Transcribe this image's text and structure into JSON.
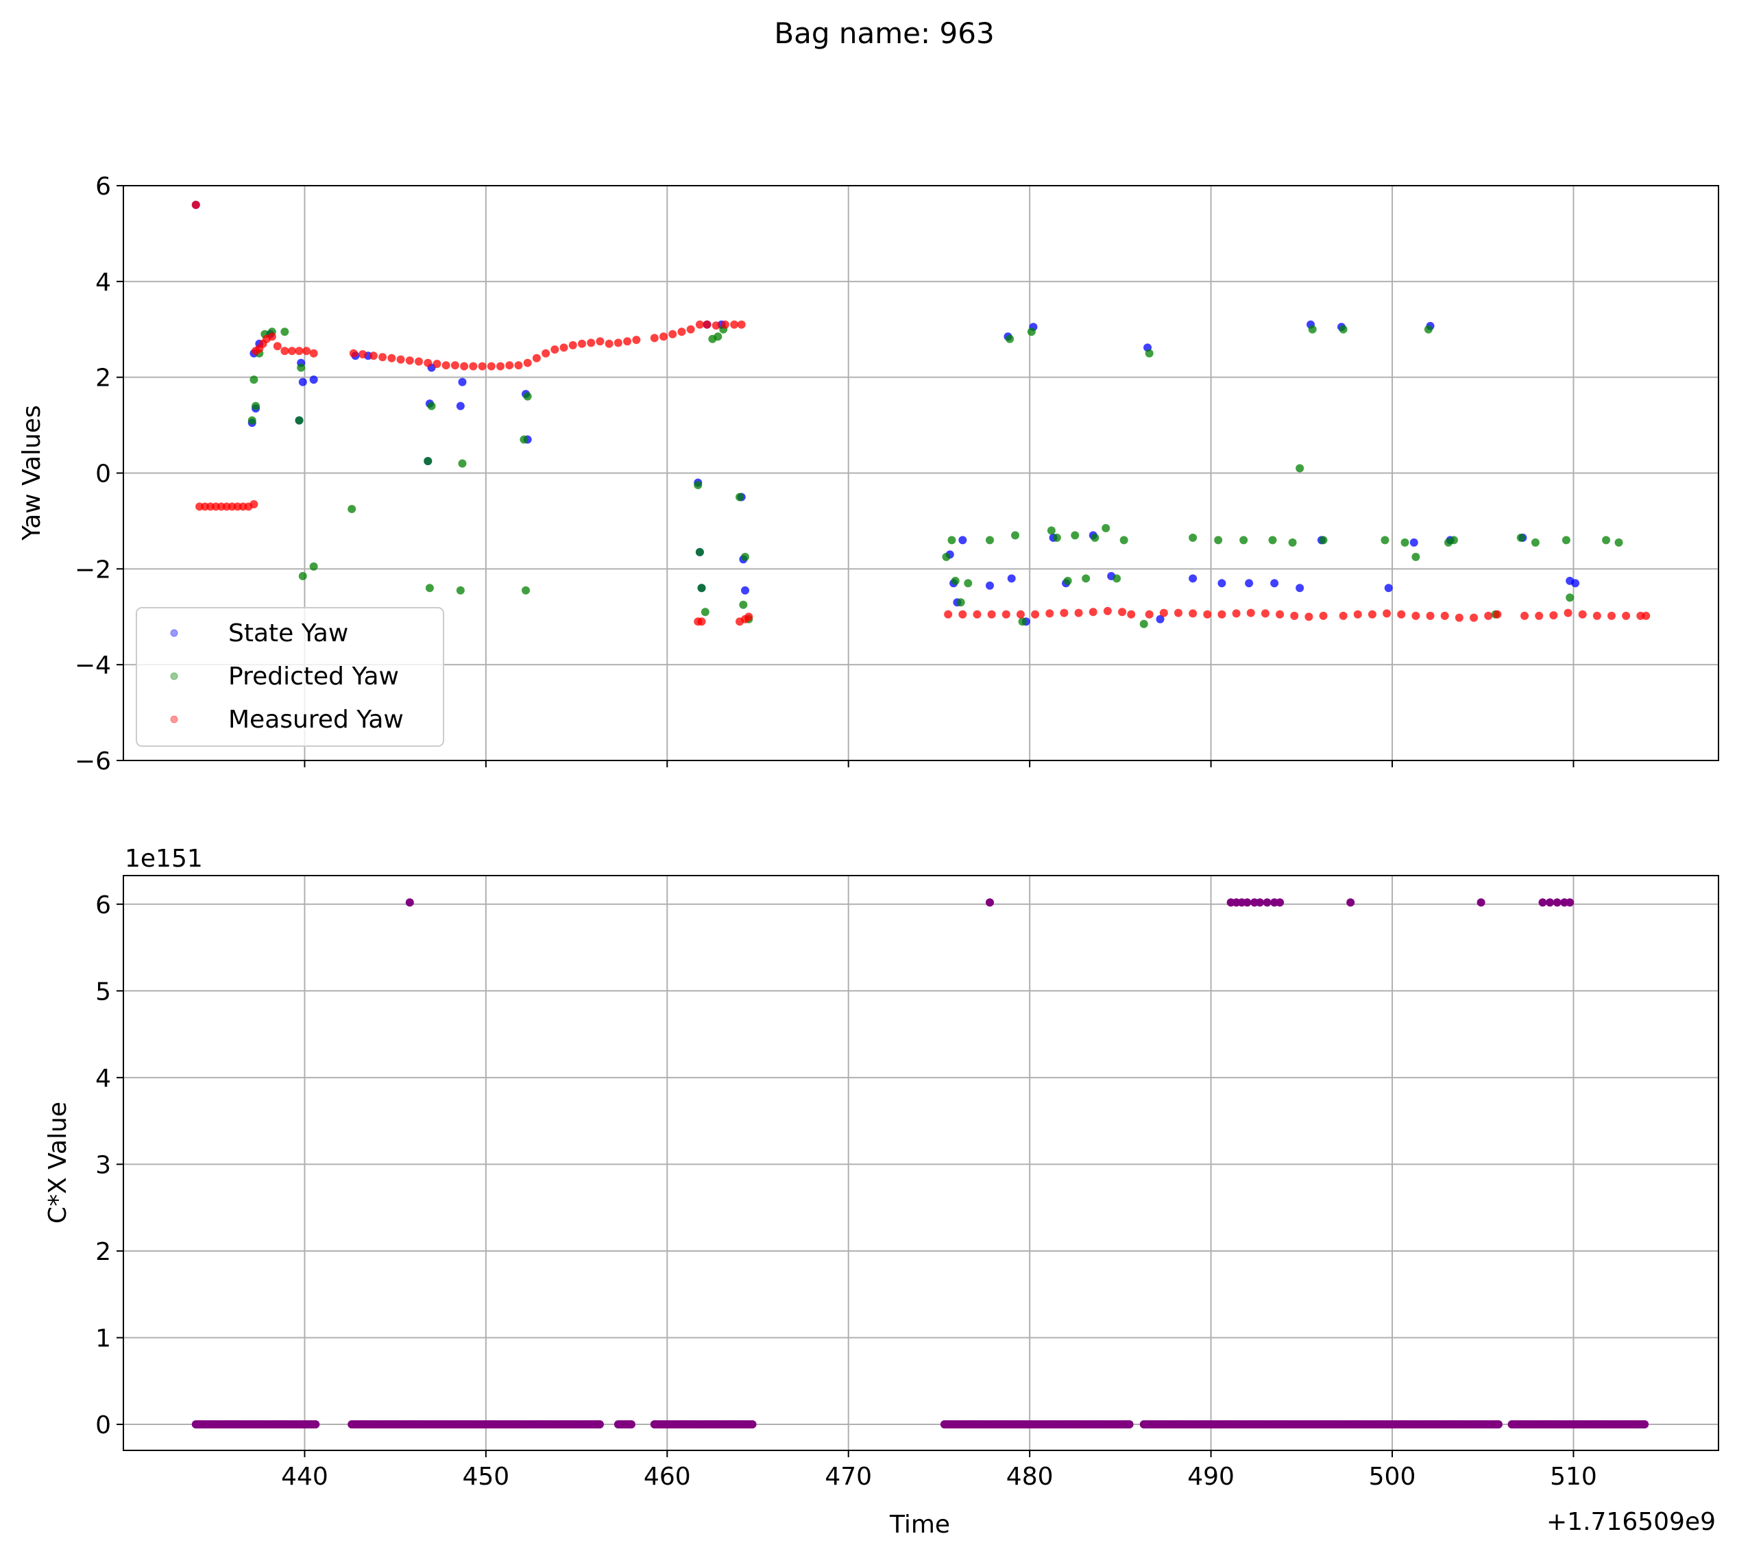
{
  "figure_title": "Bag name: 963",
  "colors": {
    "state": "#0000ff",
    "predicted": "#008000",
    "measured": "#ff0000",
    "cx": "#800080",
    "grid": "#b0b0b0"
  },
  "chart_data": [
    {
      "type": "scatter",
      "ylabel": "Yaw Values",
      "xlim": [
        430,
        518
      ],
      "ylim": [
        -6,
        6
      ],
      "xticks": [
        440,
        450,
        460,
        470,
        480,
        490,
        500,
        510
      ],
      "yticks": [
        -6,
        -4,
        -2,
        0,
        2,
        4,
        6
      ],
      "ytick_labels": [
        "−6",
        "−4",
        "−2",
        "0",
        "2",
        "4",
        "6"
      ],
      "grid": true,
      "legend_position": "lower-left",
      "series": [
        {
          "name": "State Yaw",
          "color": "#0000ff",
          "x": [
            434.0,
            437.1,
            437.2,
            437.3,
            437.5,
            438.1,
            439.7,
            439.8,
            439.9,
            440.5,
            442.8,
            443.5,
            446.8,
            446.9,
            447.0,
            448.6,
            448.7,
            452.2,
            452.3,
            461.7,
            461.8,
            461.9,
            462.2,
            463.0,
            464.1,
            464.2,
            464.3,
            475.6,
            475.8,
            476.0,
            476.3,
            477.8,
            478.8,
            479.0,
            479.8,
            480.2,
            481.3,
            482.0,
            483.5,
            484.5,
            486.5,
            487.2,
            489.0,
            490.6,
            492.1,
            493.5,
            494.9,
            495.5,
            496.1,
            497.2,
            499.8,
            501.2,
            502.1,
            503.2,
            507.2,
            509.8,
            510.1
          ],
          "y": [
            5.6,
            1.05,
            2.5,
            1.35,
            2.7,
            2.9,
            1.1,
            2.3,
            1.9,
            1.95,
            2.45,
            2.45,
            0.25,
            1.45,
            2.2,
            1.4,
            1.9,
            1.65,
            0.7,
            -0.2,
            -1.65,
            -2.4,
            3.1,
            3.1,
            -0.5,
            -1.8,
            -2.45,
            -1.7,
            -2.3,
            -2.7,
            -1.4,
            -2.35,
            2.85,
            -2.2,
            -3.1,
            3.05,
            -1.35,
            -2.3,
            -1.3,
            -2.15,
            2.62,
            -3.05,
            -2.2,
            -2.3,
            -2.3,
            -2.3,
            -2.4,
            3.1,
            -1.4,
            3.05,
            -2.4,
            -1.45,
            3.07,
            -1.4,
            -1.35,
            -2.25,
            -2.3
          ]
        },
        {
          "name": "Predicted Yaw",
          "color": "#008000",
          "x": [
            437.1,
            437.2,
            437.3,
            437.5,
            437.8,
            438.2,
            438.9,
            439.7,
            439.8,
            439.9,
            440.5,
            442.6,
            446.8,
            446.9,
            447.0,
            448.6,
            448.7,
            452.1,
            452.2,
            452.3,
            461.7,
            461.8,
            461.9,
            462.1,
            462.5,
            462.8,
            463.1,
            464.0,
            464.2,
            464.3,
            464.5,
            475.4,
            475.7,
            475.9,
            476.2,
            476.6,
            477.8,
            478.9,
            479.2,
            479.6,
            480.1,
            481.2,
            481.5,
            482.1,
            482.5,
            483.1,
            483.6,
            484.2,
            484.8,
            485.2,
            486.3,
            486.6,
            489.0,
            490.4,
            491.8,
            493.4,
            494.5,
            494.9,
            495.6,
            496.2,
            497.3,
            499.6,
            500.7,
            501.3,
            502.0,
            503.1,
            503.4,
            505.7,
            507.1,
            507.9,
            509.6,
            509.8,
            511.8,
            512.5
          ],
          "y": [
            1.1,
            1.95,
            1.4,
            2.5,
            2.9,
            2.95,
            2.95,
            1.1,
            2.2,
            -2.15,
            -1.95,
            -0.75,
            0.25,
            -2.4,
            1.4,
            -2.45,
            0.2,
            0.7,
            -2.45,
            1.6,
            -0.25,
            -1.65,
            -2.4,
            -2.9,
            2.8,
            2.85,
            3.0,
            -0.5,
            -2.75,
            -1.75,
            -3.05,
            -1.75,
            -1.4,
            -2.25,
            -2.7,
            -2.3,
            -1.4,
            2.8,
            -1.3,
            -3.1,
            2.95,
            -1.2,
            -1.35,
            -2.25,
            -1.3,
            -2.2,
            -1.35,
            -1.15,
            -2.2,
            -1.4,
            -3.15,
            2.5,
            -1.35,
            -1.4,
            -1.4,
            -1.4,
            -1.45,
            0.1,
            3.0,
            -1.4,
            3.0,
            -1.4,
            -1.45,
            -1.75,
            3.0,
            -1.45,
            -1.4,
            -2.95,
            -1.35,
            -1.45,
            -1.4,
            -2.6,
            -1.4,
            -1.45
          ]
        },
        {
          "name": "Measured Yaw",
          "color": "#ff0000",
          "x": [
            434.0,
            434.2,
            434.5,
            434.8,
            435.1,
            435.4,
            435.7,
            436.0,
            436.3,
            436.6,
            436.9,
            437.2,
            437.3,
            437.5,
            437.7,
            437.9,
            438.2,
            438.5,
            438.9,
            439.3,
            439.7,
            440.1,
            440.5,
            442.7,
            443.2,
            443.8,
            444.3,
            444.8,
            445.3,
            445.8,
            446.3,
            446.8,
            447.3,
            447.8,
            448.3,
            448.8,
            449.3,
            449.8,
            450.3,
            450.8,
            451.3,
            451.8,
            452.3,
            452.8,
            453.3,
            453.8,
            454.3,
            454.8,
            455.3,
            455.8,
            456.3,
            456.8,
            457.3,
            457.8,
            458.3,
            459.3,
            459.8,
            460.3,
            460.8,
            461.3,
            461.8,
            462.2,
            462.7,
            463.2,
            463.7,
            464.1,
            461.7,
            461.9,
            464.0,
            464.3,
            464.5,
            475.5,
            476.3,
            477.1,
            477.9,
            478.7,
            479.5,
            480.3,
            481.1,
            481.9,
            482.7,
            483.5,
            484.3,
            485.1,
            485.6,
            486.6,
            487.4,
            488.2,
            489.0,
            489.8,
            490.6,
            491.4,
            492.2,
            493.0,
            493.8,
            494.6,
            495.4,
            496.2,
            497.3,
            498.1,
            498.9,
            499.7,
            500.5,
            501.3,
            502.1,
            502.9,
            503.7,
            504.5,
            505.3,
            505.8,
            507.3,
            508.1,
            508.9,
            509.7,
            510.5,
            511.3,
            512.1,
            512.9,
            513.7,
            514.0
          ],
          "y": [
            5.6,
            -0.7,
            -0.7,
            -0.7,
            -0.7,
            -0.7,
            -0.7,
            -0.7,
            -0.7,
            -0.7,
            -0.7,
            -0.65,
            2.55,
            2.6,
            2.7,
            2.8,
            2.85,
            2.65,
            2.55,
            2.55,
            2.55,
            2.55,
            2.5,
            2.5,
            2.48,
            2.45,
            2.42,
            2.4,
            2.37,
            2.35,
            2.33,
            2.3,
            2.28,
            2.25,
            2.25,
            2.23,
            2.23,
            2.23,
            2.23,
            2.23,
            2.25,
            2.25,
            2.3,
            2.4,
            2.5,
            2.58,
            2.62,
            2.67,
            2.7,
            2.72,
            2.75,
            2.7,
            2.72,
            2.75,
            2.78,
            2.82,
            2.85,
            2.9,
            2.95,
            3.0,
            3.1,
            3.1,
            3.08,
            3.1,
            3.1,
            3.1,
            -3.1,
            -3.1,
            -3.1,
            -3.05,
            -3.0,
            -2.95,
            -2.95,
            -2.95,
            -2.95,
            -2.95,
            -2.95,
            -2.95,
            -2.93,
            -2.92,
            -2.92,
            -2.9,
            -2.88,
            -2.9,
            -2.95,
            -2.95,
            -2.92,
            -2.92,
            -2.93,
            -2.95,
            -2.95,
            -2.93,
            -2.92,
            -2.93,
            -2.95,
            -2.98,
            -3.0,
            -2.98,
            -2.98,
            -2.95,
            -2.95,
            -2.93,
            -2.95,
            -2.98,
            -2.98,
            -2.98,
            -3.02,
            -3.02,
            -2.98,
            -2.95,
            -2.98,
            -2.98,
            -2.97,
            -2.92,
            -2.95,
            -2.98,
            -2.98,
            -2.98,
            -2.98,
            -2.98
          ]
        }
      ]
    },
    {
      "type": "scatter",
      "xlabel": "Time",
      "ylabel": "C*X Value",
      "offset_text": "1e151",
      "x_offset_text": "+1.716509e9",
      "xlim": [
        430,
        518
      ],
      "ylim": [
        -0.3,
        6.33
      ],
      "xticks": [
        440,
        450,
        460,
        470,
        480,
        490,
        500,
        510
      ],
      "yticks": [
        0,
        1,
        2,
        3,
        4,
        5,
        6
      ],
      "grid": true,
      "series": [
        {
          "color": "#800080",
          "zero_segments": [
            [
              434.0,
              440.6
            ],
            [
              442.6,
              456.3
            ],
            [
              457.3,
              458.1
            ],
            [
              459.3,
              464.8
            ],
            [
              475.3,
              485.6
            ],
            [
              486.3,
              505.9
            ],
            [
              506.6,
              514.0
            ]
          ],
          "x": [
            445.8,
            477.8,
            491.1,
            491.4,
            491.7,
            492.0,
            492.4,
            492.7,
            493.1,
            493.5,
            493.8,
            497.7,
            504.9,
            508.3,
            508.7,
            509.1,
            509.5,
            509.8
          ],
          "y": [
            6.02,
            6.02,
            6.02,
            6.02,
            6.02,
            6.02,
            6.02,
            6.02,
            6.02,
            6.02,
            6.02,
            6.02,
            6.02,
            6.02,
            6.02,
            6.02,
            6.02,
            6.02
          ]
        }
      ]
    }
  ]
}
